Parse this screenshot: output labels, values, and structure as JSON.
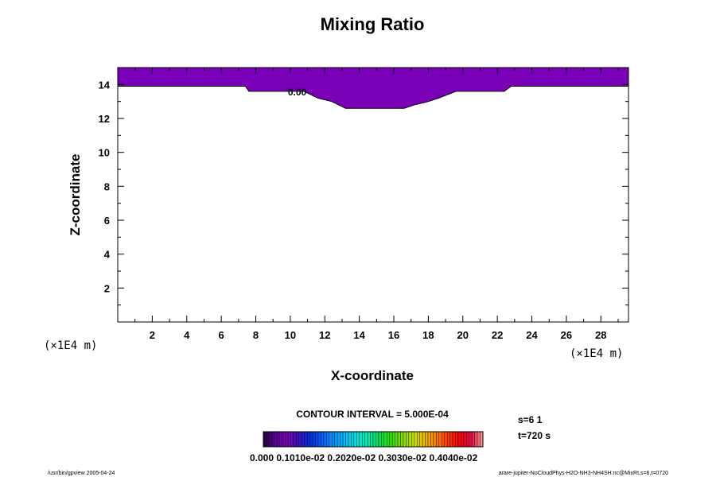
{
  "chart_data": {
    "type": "contour",
    "title": "Mixing Ratio",
    "xlabel": "X-coordinate",
    "ylabel": "Z-coordinate",
    "x_unit": "(×1E4 m)",
    "z_unit": "(×1E4 m)",
    "xlim": [
      0,
      29.6
    ],
    "ylim": [
      0,
      15
    ],
    "x_ticks": [
      "2",
      "4",
      "6",
      "8",
      "10",
      "12",
      "14",
      "16",
      "18",
      "20",
      "22",
      "24",
      "26",
      "28"
    ],
    "y_ticks": [
      "2",
      "4",
      "6",
      "8",
      "10",
      "12",
      "14"
    ],
    "region_color": "#7a00b8",
    "region_boundary": [
      [
        0,
        13.9
      ],
      [
        7.4,
        13.9
      ],
      [
        7.6,
        13.6
      ],
      [
        9.0,
        13.6
      ],
      [
        10.8,
        13.6
      ],
      [
        11.6,
        13.2
      ],
      [
        12.4,
        13.0
      ],
      [
        13.2,
        12.6
      ],
      [
        16.6,
        12.6
      ],
      [
        17.2,
        12.8
      ],
      [
        18.0,
        13.0
      ],
      [
        18.6,
        13.2
      ],
      [
        19.6,
        13.6
      ],
      [
        22.4,
        13.6
      ],
      [
        22.8,
        13.9
      ],
      [
        29.6,
        13.9
      ]
    ],
    "contour_label": "0.00",
    "contour_label_pos": [
      10.4,
      13.6
    ],
    "contour_interval": "CONTOUR INTERVAL = 5.000E-04",
    "colorbar_labels": "0.000 0.1010e-02 0.2020e-02 0.3030e-02 0.4040e-02",
    "colorbar_colors": [
      "#2a004a",
      "#5a009a",
      "#7a00b8",
      "#3a10c0",
      "#0030e0",
      "#0060ff",
      "#0090ff",
      "#00c0ff",
      "#00e0e0",
      "#00f0b0",
      "#00e060",
      "#30e000",
      "#80e000",
      "#c0e000",
      "#f0c000",
      "#ff8000",
      "#ff4000",
      "#ff0000",
      "#e00040",
      "#ff9090"
    ],
    "info_s": "s=6 1",
    "info_t": "t=720 s"
  },
  "footer": {
    "left": "/usr/bin/gpview 2005-04-24",
    "right": "arare-jupiter-NoCloudPhys-H2O-NH3-NH4SH.nc@MixRt,s=6,t=0720"
  }
}
